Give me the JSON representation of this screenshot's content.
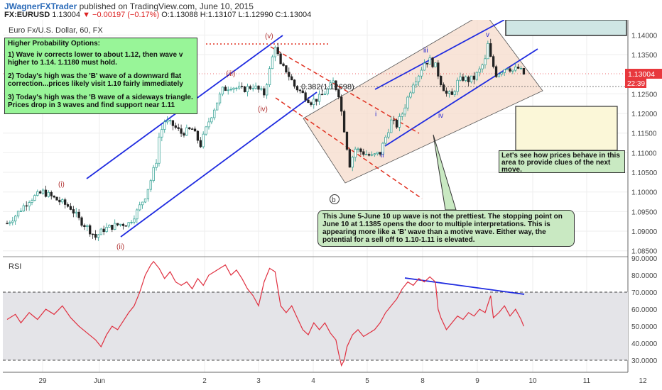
{
  "header": {
    "author": "JWagnerFXTrader",
    "published": "published on TradingView.com, June 10, 2015",
    "symbol": "FX:EURUSD",
    "last": "1.13004",
    "change": "−0.00197 (−0.17%)",
    "open": "O:1.13088",
    "high": "H:1.13107",
    "low": "L:1.12990",
    "close": "C:1.13004"
  },
  "notes": {
    "options_title": "Higher Probability Options:",
    "option1": "1)  Wave iv corrects lower to about 1.12, then wave v higher to 1.14.  1.1180 must hold.",
    "option2": "2)  Today's high was the 'B' wave of a downward flat correction...prices likely visit 1.10 fairly immediately",
    "option3": "3) Today's high was the 'B wave of a sideways triangle.  Prices drop in 3 waves and find support near 1.11",
    "wave_note": "This June 5-June 10 up wave is not the prettiest.  The stopping point on June 10 at 1.1385 opens the door to multiple interpretations.  This is appearing more like a 'B' wave than a motive wave.  Either way, the potential for a sell off to 1.10-1.11 is elevated.",
    "watch_note": "Let's see how prices behave in this area to provide clues of the next move."
  },
  "colors": {
    "up": "#2a9d8f",
    "down": "#222222",
    "trend": "#1f2be0",
    "dashed": "#e03020",
    "rsi": "#e03040",
    "price_tag": "#e8383d",
    "time_tag": "#e8383d",
    "channel_fill": "#f5d8c8",
    "rsi_band": "#e4e4e8"
  },
  "chart_data": [
    {
      "type": "candlestick",
      "title": "Euro Fx/U.S. Dollar, 60, FX",
      "x_ticks": [
        "29",
        "Jun",
        "2",
        "3",
        "4",
        "5",
        "8",
        "9",
        "10",
        "11",
        "12"
      ],
      "y_ticks": [
        "1.14000",
        "1.13500",
        "1.12500",
        "1.12000",
        "1.11500",
        "1.11000",
        "1.10500",
        "1.10000",
        "1.09500",
        "1.09000",
        "1.08500"
      ],
      "ylim": [
        1.0835,
        1.1435
      ],
      "current_price": "1.13004",
      "time_left": "22:39",
      "fib_label": "0.382(1.12698)",
      "wave_labels": [
        "(i)",
        "(ii)",
        "(iii)",
        "(iv)",
        "(v)",
        "i",
        "ii",
        "iii",
        "iv",
        "v",
        "b"
      ],
      "path": [
        [
          0,
          1.092
        ],
        [
          3,
          1.094
        ],
        [
          8,
          1.098
        ],
        [
          13,
          1.1
        ],
        [
          18,
          1.098
        ],
        [
          23,
          1.096
        ],
        [
          26,
          1.093
        ],
        [
          29,
          1.091
        ],
        [
          32,
          1.0885
        ],
        [
          35,
          1.0905
        ],
        [
          38,
          1.0912
        ],
        [
          41,
          1.0918
        ],
        [
          44,
          1.092
        ],
        [
          47,
          1.095
        ],
        [
          50,
          1.099
        ],
        [
          52,
          1.103
        ],
        [
          54,
          1.108
        ],
        [
          55,
          1.114
        ],
        [
          57,
          1.118
        ],
        [
          60,
          1.117
        ],
        [
          63,
          1.115
        ],
        [
          67,
          1.116
        ],
        [
          70,
          1.112
        ],
        [
          73,
          1.118
        ],
        [
          76,
          1.123
        ],
        [
          78,
          1.126
        ],
        [
          81,
          1.127
        ],
        [
          85,
          1.126
        ],
        [
          89,
          1.127
        ],
        [
          93,
          1.125
        ],
        [
          95,
          1.131
        ],
        [
          97,
          1.1375
        ],
        [
          99,
          1.132
        ],
        [
          101,
          1.131
        ],
        [
          104,
          1.127
        ],
        [
          107,
          1.125
        ],
        [
          110,
          1.123
        ],
        [
          113,
          1.124
        ],
        [
          116,
          1.126
        ],
        [
          118,
          1.128
        ],
        [
          120,
          1.125
        ],
        [
          122,
          1.116
        ],
        [
          124,
          1.107
        ],
        [
          126,
          1.111
        ],
        [
          129,
          1.11
        ],
        [
          132,
          1.109
        ],
        [
          135,
          1.11
        ],
        [
          137,
          1.114
        ],
        [
          139,
          1.118
        ],
        [
          141,
          1.117
        ],
        [
          143,
          1.12
        ],
        [
          145,
          1.124
        ],
        [
          147,
          1.128
        ],
        [
          149,
          1.13
        ],
        [
          151,
          1.133
        ],
        [
          153,
          1.1335
        ],
        [
          155,
          1.132
        ],
        [
          157,
          1.128
        ],
        [
          159,
          1.125
        ],
        [
          161,
          1.1245
        ],
        [
          163,
          1.128
        ],
        [
          165,
          1.129
        ],
        [
          167,
          1.1285
        ],
        [
          169,
          1.129
        ],
        [
          171,
          1.131
        ],
        [
          173,
          1.1335
        ],
        [
          174,
          1.1375
        ],
        [
          175,
          1.134
        ],
        [
          177,
          1.13
        ],
        [
          179,
          1.131
        ],
        [
          181,
          1.132
        ],
        [
          183,
          1.131
        ],
        [
          185,
          1.1315
        ],
        [
          187,
          1.13004
        ]
      ]
    },
    {
      "type": "line",
      "title": "RSI",
      "y_ticks": [
        "90.0000",
        "80.0000",
        "70.0000",
        "60.0000",
        "50.0000",
        "40.0000",
        "30.0000"
      ],
      "ylim": [
        23,
        90
      ],
      "bands": [
        30,
        70
      ],
      "values": [
        [
          0,
          54
        ],
        [
          3,
          57
        ],
        [
          5,
          52
        ],
        [
          8,
          58
        ],
        [
          11,
          54
        ],
        [
          14,
          60
        ],
        [
          17,
          57
        ],
        [
          20,
          62
        ],
        [
          23,
          55
        ],
        [
          26,
          50
        ],
        [
          29,
          46
        ],
        [
          32,
          42
        ],
        [
          34,
          38
        ],
        [
          36,
          45
        ],
        [
          38,
          50
        ],
        [
          40,
          48
        ],
        [
          42,
          53
        ],
        [
          44,
          58
        ],
        [
          46,
          62
        ],
        [
          48,
          70
        ],
        [
          50,
          80
        ],
        [
          52,
          86
        ],
        [
          53,
          88
        ],
        [
          55,
          84
        ],
        [
          57,
          78
        ],
        [
          59,
          82
        ],
        [
          61,
          76
        ],
        [
          63,
          74
        ],
        [
          65,
          76
        ],
        [
          67,
          72
        ],
        [
          69,
          78
        ],
        [
          71,
          74
        ],
        [
          73,
          80
        ],
        [
          75,
          82
        ],
        [
          77,
          84
        ],
        [
          79,
          86
        ],
        [
          81,
          80
        ],
        [
          83,
          83
        ],
        [
          85,
          78
        ],
        [
          87,
          72
        ],
        [
          89,
          68
        ],
        [
          91,
          62
        ],
        [
          93,
          76
        ],
        [
          95,
          84
        ],
        [
          97,
          82
        ],
        [
          99,
          62
        ],
        [
          101,
          58
        ],
        [
          103,
          62
        ],
        [
          105,
          55
        ],
        [
          107,
          48
        ],
        [
          109,
          45
        ],
        [
          111,
          52
        ],
        [
          113,
          48
        ],
        [
          115,
          52
        ],
        [
          117,
          46
        ],
        [
          119,
          42
        ],
        [
          120,
          34
        ],
        [
          121,
          27
        ],
        [
          122,
          30
        ],
        [
          123,
          38
        ],
        [
          125,
          45
        ],
        [
          127,
          48
        ],
        [
          129,
          44
        ],
        [
          131,
          46
        ],
        [
          133,
          48
        ],
        [
          135,
          52
        ],
        [
          137,
          58
        ],
        [
          139,
          62
        ],
        [
          141,
          66
        ],
        [
          143,
          72
        ],
        [
          145,
          76
        ],
        [
          147,
          74
        ],
        [
          149,
          78
        ],
        [
          151,
          76
        ],
        [
          153,
          79
        ],
        [
          155,
          76
        ],
        [
          156,
          60
        ],
        [
          157,
          55
        ],
        [
          159,
          48
        ],
        [
          161,
          52
        ],
        [
          163,
          56
        ],
        [
          165,
          54
        ],
        [
          167,
          58
        ],
        [
          169,
          56
        ],
        [
          171,
          60
        ],
        [
          173,
          58
        ],
        [
          175,
          68
        ],
        [
          176,
          55
        ],
        [
          178,
          58
        ],
        [
          180,
          62
        ],
        [
          182,
          56
        ],
        [
          184,
          60
        ],
        [
          186,
          54
        ],
        [
          187,
          50
        ]
      ]
    }
  ]
}
